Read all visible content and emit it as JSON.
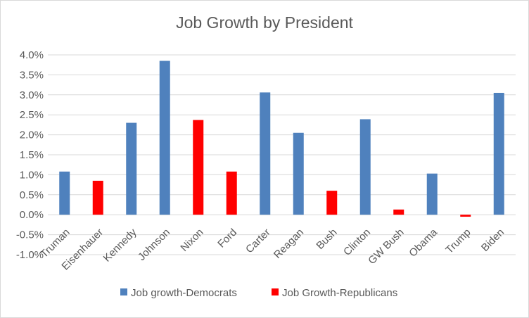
{
  "chart_data": {
    "type": "bar",
    "title": "Job Growth by President",
    "xlabel": "",
    "ylabel": "",
    "ylim": [
      -1.0,
      4.0
    ],
    "yticks": [
      -1.0,
      -0.5,
      0.0,
      0.5,
      1.0,
      1.5,
      2.0,
      2.5,
      3.0,
      3.5,
      4.0
    ],
    "ytick_labels": [
      "-1.0%",
      "-0.5%",
      "0.0%",
      "0.5%",
      "1.0%",
      "1.5%",
      "2.0%",
      "2.5%",
      "3.0%",
      "3.5%",
      "4.0%"
    ],
    "grid": true,
    "legend_position": "bottom",
    "categories": [
      "Truman",
      "Eisenhauer",
      "Kennedy",
      "Johnson",
      "Nixon",
      "Ford",
      "Carter",
      "Reagan",
      "Bush",
      "Clinton",
      "GW Bush",
      "Obama",
      "Trump",
      "Biden"
    ],
    "series": [
      {
        "name": "Job growth-Democrats",
        "color": "#4f81bd",
        "values": [
          1.08,
          null,
          2.3,
          3.85,
          null,
          null,
          3.06,
          2.05,
          null,
          2.39,
          null,
          1.03,
          null,
          3.05
        ]
      },
      {
        "name": "Job Growth-Republicans",
        "color": "#ff0000",
        "values": [
          null,
          0.85,
          null,
          null,
          2.37,
          1.08,
          null,
          null,
          0.6,
          null,
          0.13,
          null,
          -0.05,
          null
        ]
      }
    ]
  }
}
